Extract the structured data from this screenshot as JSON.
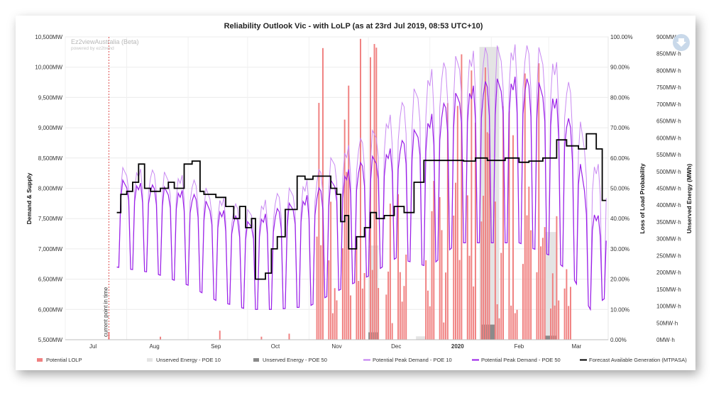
{
  "chart_data": {
    "type": "line",
    "title": "Reliability Outlook Vic - with LoLP (as at 23rd Jul 2019, 08:53 UTC+10)",
    "watermark": {
      "brand": "Ez2viewAustralia (Beta)",
      "powered": "powered by ez2trend"
    },
    "current_point_label": "current point in time",
    "x_axis": {
      "start": "2019-07-01",
      "end": "2020-03-31",
      "ticks": [
        {
          "label": "Jul",
          "date": "2019-07-15",
          "bold": false
        },
        {
          "label": "Aug",
          "date": "2019-08-15",
          "bold": false
        },
        {
          "label": "Sep",
          "date": "2019-09-15",
          "bold": false
        },
        {
          "label": "Oct",
          "date": "2019-10-15",
          "bold": false
        },
        {
          "label": "Nov",
          "date": "2019-11-15",
          "bold": false
        },
        {
          "label": "Dec",
          "date": "2019-12-15",
          "bold": false
        },
        {
          "label": "2020",
          "date": "2020-01-15",
          "bold": true
        },
        {
          "label": "Feb",
          "date": "2020-02-15",
          "bold": false
        },
        {
          "label": "Mar",
          "date": "2020-03-15",
          "bold": false
        }
      ],
      "current_date": "2019-07-23"
    },
    "y_axes": {
      "left": {
        "label": "Demand & Supply",
        "min": 5500,
        "max": 10500,
        "ticks": [
          "5,500MW",
          "6,000MW",
          "6,500MW",
          "7,000MW",
          "7,500MW",
          "8,000MW",
          "8,500MW",
          "9,000MW",
          "9,500MW",
          "10,000MW",
          "10,500MW"
        ]
      },
      "right1": {
        "label": "Loss of Load Probability",
        "min": 0,
        "max": 100,
        "ticks": [
          "0.00%",
          "10.00%",
          "20.00%",
          "30.00%",
          "40.00%",
          "50.00%",
          "60.00%",
          "70.00%",
          "80.00%",
          "90.00%",
          "100.00%"
        ]
      },
      "right2": {
        "label": "Unserved Energy (MWh)",
        "min": 0,
        "max": 900,
        "ticks": [
          "0MW·h",
          "50MW·h",
          "100MW·h",
          "150MW·h",
          "200MW·h",
          "250MW·h",
          "300MW·h",
          "350MW·h",
          "400MW·h",
          "450MW·h",
          "500MW·h",
          "550MW·h",
          "600MW·h",
          "650MW·h",
          "700MW·h",
          "750MW·h",
          "800MW·h",
          "850MW·h",
          "900MW·h"
        ]
      }
    },
    "legend": [
      {
        "key": "lolp",
        "name": "Potential LOLP",
        "color": "#f08080",
        "shape": "bar"
      },
      {
        "key": "ue10",
        "name": "Unserved Energy - POE 10",
        "color": "#e4e4e4",
        "shape": "bar"
      },
      {
        "key": "ue50",
        "name": "Unserved Energy - POE 50",
        "color": "#8a8a8a",
        "shape": "bar"
      },
      {
        "key": "pd10",
        "name": "Potential Peak Demand - POE 10",
        "color": "#c17cf0",
        "shape": "line"
      },
      {
        "key": "pd50",
        "name": "Potential Peak Demand - POE 50",
        "color": "#9a1ee8",
        "shape": "line"
      },
      {
        "key": "gen",
        "name": "Forecast Available Generation (MTPASA)",
        "color": "#000000",
        "shape": "line"
      }
    ],
    "series": {
      "gen_steps": [
        [
          "2019-07-27",
          7600
        ],
        [
          "2019-07-29",
          7900
        ],
        [
          "2019-08-01",
          7950
        ],
        [
          "2019-08-04",
          8100
        ],
        [
          "2019-08-07",
          8400
        ],
        [
          "2019-08-10",
          8000
        ],
        [
          "2019-08-13",
          7950
        ],
        [
          "2019-08-18",
          8000
        ],
        [
          "2019-08-22",
          8100
        ],
        [
          "2019-08-25",
          8000
        ],
        [
          "2019-08-30",
          8400
        ],
        [
          "2019-09-03",
          8450
        ],
        [
          "2019-09-07",
          7950
        ],
        [
          "2019-09-09",
          7900
        ],
        [
          "2019-09-15",
          7850
        ],
        [
          "2019-09-20",
          7700
        ],
        [
          "2019-09-24",
          7500
        ],
        [
          "2019-09-27",
          7700
        ],
        [
          "2019-09-30",
          7350
        ],
        [
          "2019-10-03",
          7500
        ],
        [
          "2019-10-05",
          6500
        ],
        [
          "2019-10-10",
          6600
        ],
        [
          "2019-10-13",
          7000
        ],
        [
          "2019-10-16",
          7200
        ],
        [
          "2019-10-20",
          7650
        ],
        [
          "2019-10-26",
          8200
        ],
        [
          "2019-10-30",
          8150
        ],
        [
          "2019-11-03",
          8200
        ],
        [
          "2019-11-07",
          8200
        ],
        [
          "2019-11-12",
          8000
        ],
        [
          "2019-11-15",
          7900
        ],
        [
          "2019-11-17",
          7450
        ],
        [
          "2019-11-19",
          7550
        ],
        [
          "2019-11-21",
          7000
        ],
        [
          "2019-11-25",
          7200
        ],
        [
          "2019-11-29",
          7350
        ],
        [
          "2019-12-02",
          7600
        ],
        [
          "2019-12-05",
          7500
        ],
        [
          "2019-12-09",
          7550
        ],
        [
          "2019-12-14",
          7700
        ],
        [
          "2019-12-19",
          7600
        ],
        [
          "2019-12-24",
          8100
        ],
        [
          "2019-12-29",
          8460
        ],
        [
          "2020-01-05",
          8460
        ],
        [
          "2020-01-18",
          8450
        ],
        [
          "2020-01-24",
          8500
        ],
        [
          "2020-01-30",
          8460
        ],
        [
          "2020-02-08",
          8500
        ],
        [
          "2020-02-15",
          8430
        ],
        [
          "2020-02-20",
          8450
        ],
        [
          "2020-02-27",
          8500
        ],
        [
          "2020-03-05",
          8800
        ],
        [
          "2020-03-10",
          8700
        ],
        [
          "2020-03-16",
          8650
        ],
        [
          "2020-03-20",
          8900
        ],
        [
          "2020-03-25",
          8650
        ],
        [
          "2020-03-28",
          7800
        ],
        [
          "2020-03-30",
          7800
        ]
      ],
      "pd10_profile": [
        [
          "2019-07-27",
          8350
        ],
        [
          "2019-08-15",
          8300
        ],
        [
          "2019-09-01",
          8200
        ],
        [
          "2019-09-15",
          7900
        ],
        [
          "2019-10-01",
          7650
        ],
        [
          "2019-10-15",
          7900
        ],
        [
          "2019-11-01",
          8150
        ],
        [
          "2019-11-15",
          8600
        ],
        [
          "2019-12-01",
          8900
        ],
        [
          "2019-12-15",
          9300
        ],
        [
          "2020-01-01",
          9950
        ],
        [
          "2020-01-15",
          10200
        ],
        [
          "2020-02-01",
          10350
        ],
        [
          "2020-02-15",
          10380
        ],
        [
          "2020-03-01",
          10300
        ],
        [
          "2020-03-12",
          9700
        ],
        [
          "2020-03-22",
          8500
        ],
        [
          "2020-03-30",
          8300
        ]
      ],
      "pd50_profile": [
        [
          "2019-07-27",
          8150
        ],
        [
          "2019-08-15",
          8050
        ],
        [
          "2019-09-01",
          7950
        ],
        [
          "2019-09-15",
          7700
        ],
        [
          "2019-10-01",
          7450
        ],
        [
          "2019-10-15",
          7650
        ],
        [
          "2019-11-01",
          7900
        ],
        [
          "2019-11-15",
          8200
        ],
        [
          "2019-12-01",
          8500
        ],
        [
          "2019-12-15",
          8700
        ],
        [
          "2020-01-01",
          9200
        ],
        [
          "2020-01-15",
          9600
        ],
        [
          "2020-02-01",
          9800
        ],
        [
          "2020-02-15",
          9850
        ],
        [
          "2020-03-01",
          9700
        ],
        [
          "2020-03-12",
          9100
        ],
        [
          "2020-03-22",
          7700
        ],
        [
          "2020-03-30",
          7400
        ]
      ],
      "trough_profile": [
        [
          "2019-07-27",
          6700
        ],
        [
          "2019-08-15",
          6600
        ],
        [
          "2019-09-01",
          6400
        ],
        [
          "2019-09-15",
          6150
        ],
        [
          "2019-10-01",
          6000
        ],
        [
          "2019-10-15",
          6000
        ],
        [
          "2019-11-01",
          6050
        ],
        [
          "2019-11-15",
          6300
        ],
        [
          "2019-12-01",
          6550
        ],
        [
          "2019-12-15",
          6850
        ],
        [
          "2020-01-01",
          6700
        ],
        [
          "2020-01-15",
          7100
        ],
        [
          "2020-02-01",
          7100
        ],
        [
          "2020-02-15",
          7100
        ],
        [
          "2020-03-01",
          6900
        ],
        [
          "2020-03-12",
          6600
        ],
        [
          "2020-03-22",
          6000
        ],
        [
          "2020-03-30",
          6200
        ]
      ],
      "lolp_clusters": [
        {
          "start": "2019-11-05",
          "end": "2019-12-07",
          "peak": 95
        },
        {
          "start": "2019-12-10",
          "end": "2019-12-20",
          "peak": 55
        },
        {
          "start": "2019-12-29",
          "end": "2020-02-25",
          "peak": 90
        },
        {
          "start": "2020-02-26",
          "end": "2020-03-12",
          "peak": 40
        }
      ],
      "lolp_small": [
        [
          "2019-07-23",
          2.5
        ],
        [
          "2019-09-17",
          3
        ],
        [
          "2019-10-22",
          2
        ],
        [
          "2019-08-18",
          1
        ],
        [
          "2019-10-08",
          1
        ]
      ],
      "ue10_bars": [
        {
          "start": "2019-12-01",
          "end": "2019-12-06",
          "value": 280
        },
        {
          "start": "2019-12-25",
          "end": "2019-12-30",
          "value": 10
        },
        {
          "start": "2020-01-26",
          "end": "2020-02-05",
          "value": 870
        },
        {
          "start": "2020-02-28",
          "end": "2020-03-05",
          "value": 320
        }
      ],
      "ue50_bars": [
        {
          "start": "2019-12-01",
          "end": "2019-12-06",
          "value": 22
        },
        {
          "start": "2020-01-27",
          "end": "2020-02-03",
          "value": 45
        },
        {
          "start": "2020-02-28",
          "end": "2020-03-05",
          "value": 12
        }
      ]
    }
  }
}
